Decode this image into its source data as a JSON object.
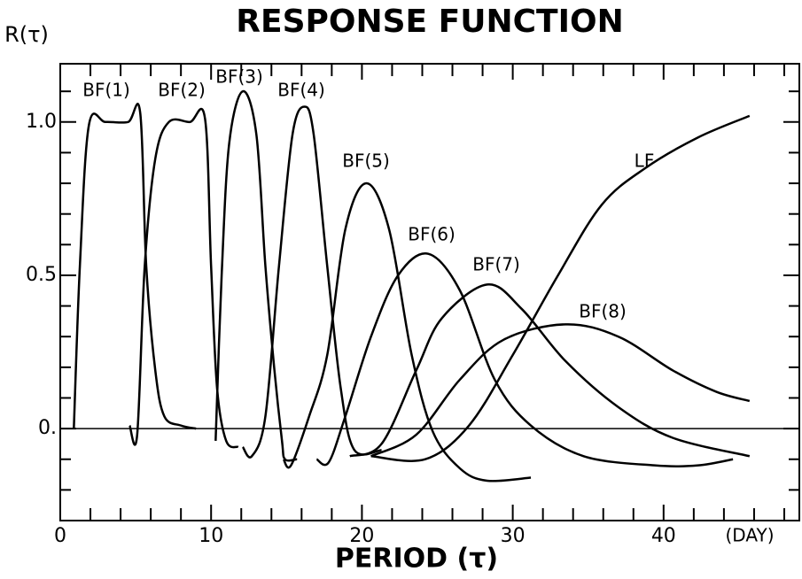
{
  "chart_data": {
    "type": "line",
    "title": "RESPONSE FUNCTION",
    "x_label": "PERIOD (τ)",
    "x_unit": "(DAY)",
    "y_label": "R(τ)",
    "xlim": [
      0,
      49
    ],
    "ylim": [
      -0.3,
      1.19
    ],
    "xticks": [
      0,
      10,
      20,
      30,
      40
    ],
    "yticks": [
      {
        "value": 0,
        "label": "0."
      },
      0.5,
      {
        "value": 1,
        "label": "1.0"
      }
    ],
    "xminor_ticks": [
      2,
      4,
      6,
      8,
      12,
      14,
      16,
      18,
      22,
      24,
      26,
      28,
      32,
      34,
      36,
      38,
      42,
      44,
      46,
      48
    ],
    "yminor_ticks": [
      -0.2,
      -0.1,
      0.1,
      0.2,
      0.3,
      0.4,
      0.6,
      0.7,
      0.8,
      0.9,
      1.1
    ],
    "color": "#000000",
    "series": [
      {
        "name": "BF(1)",
        "x": [
          0.9,
          1.3,
          1.9,
          3,
          4.5,
          5.3,
          5.7,
          6.3,
          6.9,
          8,
          9
        ],
        "values": [
          0,
          0.53,
          0.99,
          1.0,
          1.0,
          1.03,
          0.53,
          0.19,
          0.04,
          0.01,
          0
        ]
      },
      {
        "name": "BF(2)",
        "x": [
          4.6,
          5.1,
          5.6,
          6.3,
          7.2,
          8.6,
          9.6,
          10.0,
          10.4,
          11,
          11.8
        ],
        "values": [
          0.01,
          -0.02,
          0.53,
          0.88,
          1.0,
          1.0,
          1.01,
          0.53,
          0.13,
          -0.04,
          -0.06
        ]
      },
      {
        "name": "BF(3)",
        "x": [
          10.3,
          10.7,
          11.2,
          12.1,
          13,
          13.6,
          14.2,
          14.7,
          14.9,
          15.7
        ],
        "values": [
          -0.04,
          0.5,
          0.93,
          1.1,
          0.96,
          0.53,
          0.19,
          -0.04,
          -0.1,
          -0.1
        ]
      },
      {
        "name": "BF(4)",
        "x": [
          12.1,
          12.7,
          13.6,
          14.5,
          15.4,
          16.2,
          16.8,
          17.7,
          18.6,
          19.5,
          21.3
        ],
        "values": [
          -0.06,
          -0.09,
          0.04,
          0.53,
          0.96,
          1.05,
          0.96,
          0.53,
          0.13,
          -0.07,
          -0.07
        ]
      },
      {
        "name": "BF(5)",
        "x": [
          14.8,
          15.3,
          16.5,
          17.7,
          18.9,
          20.3,
          21.8,
          23.3,
          24.7,
          26.5,
          28.3,
          31.2
        ],
        "values": [
          -0.1,
          -0.12,
          0.04,
          0.24,
          0.65,
          0.8,
          0.65,
          0.24,
          -0.01,
          -0.13,
          -0.17,
          -0.16
        ]
      },
      {
        "name": "BF(6)",
        "x": [
          17,
          17.8,
          18.9,
          20.6,
          22.4,
          24.4,
          26.5,
          28.8,
          31.2,
          34.7,
          39.4,
          42.3,
          44.6
        ],
        "values": [
          -0.1,
          -0.11,
          0.04,
          0.3,
          0.5,
          0.57,
          0.45,
          0.16,
          0.01,
          -0.09,
          -0.12,
          -0.12,
          -0.1
        ]
      },
      {
        "name": "BF(7)",
        "x": [
          19.2,
          21.3,
          23.6,
          25.3,
          28.3,
          30.6,
          33.5,
          37,
          40.6,
          45.7
        ],
        "values": [
          -0.09,
          -0.05,
          0.19,
          0.36,
          0.47,
          0.39,
          0.22,
          0.07,
          -0.03,
          -0.09
        ]
      },
      {
        "name": "BF(8)",
        "x": [
          20.6,
          23.6,
          26.5,
          29.4,
          33.5,
          37,
          40.6,
          43.5,
          45.7
        ],
        "values": [
          -0.09,
          -0.02,
          0.16,
          0.29,
          0.34,
          0.3,
          0.19,
          0.12,
          0.09
        ]
      },
      {
        "name": "LF",
        "x": [
          20.6,
          24.2,
          27.1,
          30,
          33,
          35.9,
          38.8,
          42.3,
          45.7
        ],
        "values": [
          -0.09,
          -0.1,
          0.01,
          0.24,
          0.5,
          0.73,
          0.85,
          0.95,
          1.02
        ]
      }
    ]
  }
}
